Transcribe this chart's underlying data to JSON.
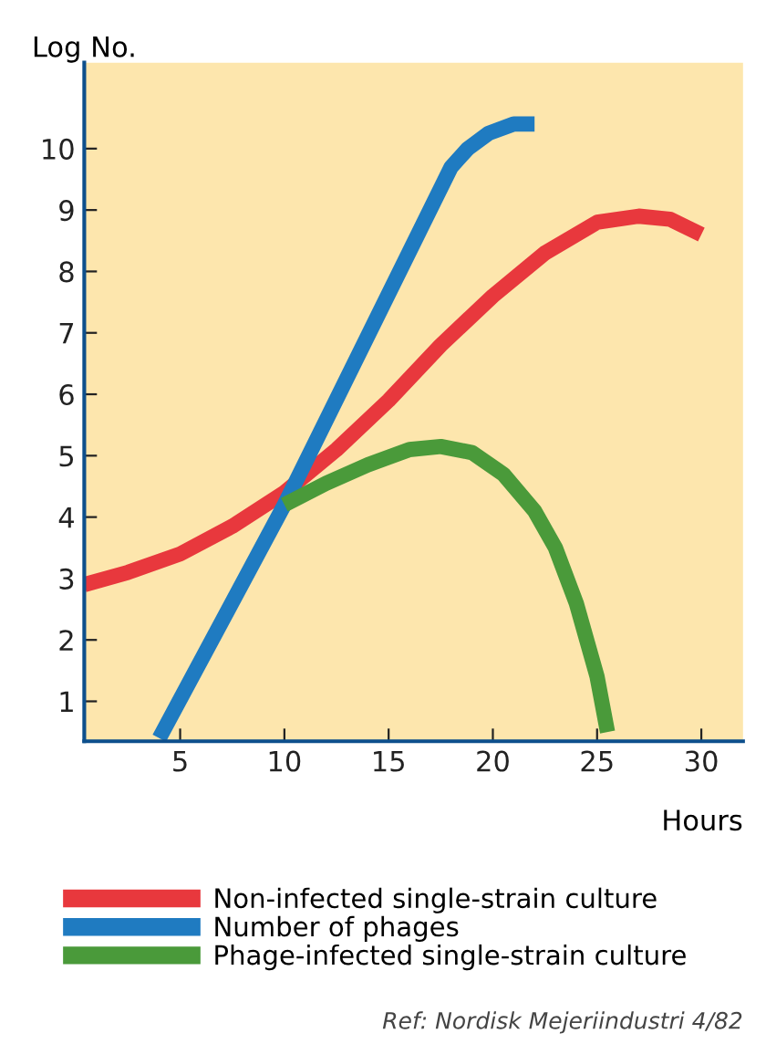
{
  "chart_data": {
    "type": "line",
    "ylabel": "Log No.",
    "xlabel": "Hours",
    "xlim": [
      0.4,
      32
    ],
    "ylim": [
      0.35,
      11.4
    ],
    "xticks": [
      5,
      10,
      15,
      20,
      25,
      30
    ],
    "yticks": [
      1,
      2,
      3,
      4,
      5,
      6,
      7,
      8,
      9,
      10
    ],
    "grid": false,
    "legend": "bottom",
    "marker": "none",
    "line_style": "solid",
    "series": [
      {
        "name": "Non-infected single-strain culture",
        "color": "#e8383d",
        "x": [
          0.4,
          2.5,
          5,
          7.5,
          10,
          12.5,
          15,
          17.5,
          20,
          22.5,
          25,
          27,
          28.5,
          30
        ],
        "values": [
          2.9,
          3.1,
          3.4,
          3.85,
          4.4,
          5.1,
          5.9,
          6.8,
          7.6,
          8.3,
          8.8,
          8.9,
          8.85,
          8.6
        ]
      },
      {
        "name": "Number of phages",
        "color": "#1f7bc1",
        "x": [
          4,
          10,
          18,
          18.8,
          19.8,
          21,
          22
        ],
        "values": [
          0.4,
          4.2,
          9.7,
          10.0,
          10.25,
          10.4,
          10.4
        ]
      },
      {
        "name": "Phage-infected single-strain culture",
        "color": "#4a9a3a",
        "x": [
          10,
          12,
          14,
          16,
          17.5,
          19,
          20.5,
          22,
          23,
          24,
          25,
          25.5
        ],
        "values": [
          4.2,
          4.55,
          4.85,
          5.1,
          5.15,
          5.05,
          4.7,
          4.1,
          3.5,
          2.6,
          1.4,
          0.5
        ]
      }
    ],
    "annotations": [
      "Ref: Nordisk Mejeriindustri 4/82"
    ]
  }
}
